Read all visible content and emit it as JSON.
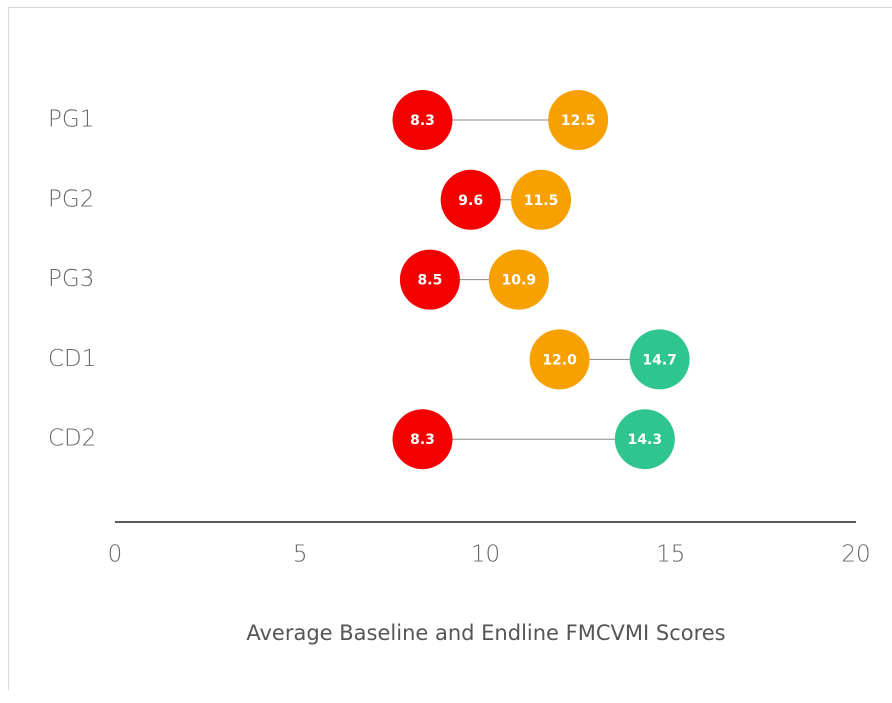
{
  "chart_data": {
    "type": "dumbbell",
    "xlabel": "Average Baseline and Endline FMCVMI Scores",
    "categories": [
      "PG1",
      "PG2",
      "PG3",
      "CD1",
      "CD2"
    ],
    "series": [
      {
        "values": [
          8.3,
          9.6,
          8.5,
          12.0,
          8.3
        ],
        "value_labels": [
          "8.3",
          "9.6",
          "8.5",
          "12.0",
          "8.3"
        ],
        "colors": [
          "#f50000",
          "#f50000",
          "#f50000",
          "#f7a000",
          "#f50000"
        ]
      },
      {
        "values": [
          12.5,
          11.5,
          10.9,
          14.7,
          14.3
        ],
        "value_labels": [
          "12.5",
          "11.5",
          "10.9",
          "14.7",
          "14.3"
        ],
        "colors": [
          "#f7a000",
          "#f7a000",
          "#f7a000",
          "#2ec68e",
          "#2ec68e"
        ]
      }
    ],
    "connector_color": "#888888",
    "xlim": [
      0,
      20
    ],
    "xticks": [
      0,
      5,
      10,
      15,
      20
    ]
  }
}
